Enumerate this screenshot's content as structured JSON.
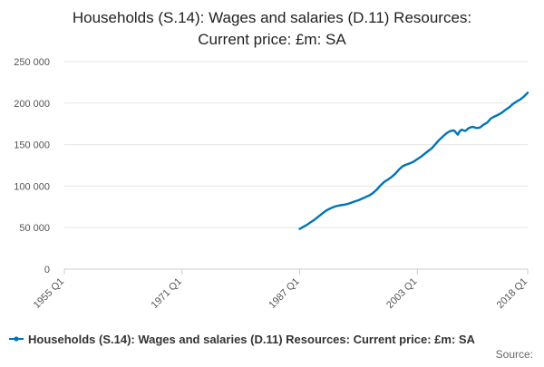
{
  "chart_data": {
    "type": "line",
    "title_lines": [
      "Households (S.14): Wages and salaries (D.11) Resources:",
      "Current price: £m: SA"
    ],
    "xlabel": "",
    "ylabel": "",
    "x_domain": [
      1955.0,
      2018.0
    ],
    "ylim": [
      0,
      250000
    ],
    "y_ticks": [
      0,
      50000,
      100000,
      150000,
      200000,
      250000
    ],
    "y_tick_labels": [
      "0",
      "50 000",
      "100 000",
      "150 000",
      "200 000",
      "250 000"
    ],
    "x_ticks": [
      1955.0,
      1971.0,
      1987.0,
      2003.0,
      2018.0
    ],
    "x_tick_labels": [
      "1955 Q1",
      "1971 Q1",
      "1987 Q1",
      "2003 Q1",
      "2018 Q1"
    ],
    "grid": "horizontal",
    "legend_position": "bottom",
    "series": [
      {
        "name": "Households (S.14): Wages and salaries (D.11) Resources: Current price: £m: SA",
        "color": "#0075b3",
        "points": [
          [
            1987.0,
            48500
          ],
          [
            1987.5,
            51000
          ],
          [
            1988.0,
            53500
          ],
          [
            1988.5,
            56500
          ],
          [
            1989.0,
            59500
          ],
          [
            1989.5,
            63000
          ],
          [
            1990.0,
            66500
          ],
          [
            1990.5,
            70000
          ],
          [
            1991.0,
            72500
          ],
          [
            1991.5,
            74500
          ],
          [
            1992.0,
            76000
          ],
          [
            1992.5,
            77000
          ],
          [
            1993.0,
            77500
          ],
          [
            1993.5,
            78500
          ],
          [
            1994.0,
            80000
          ],
          [
            1994.5,
            81500
          ],
          [
            1995.0,
            83000
          ],
          [
            1995.5,
            85000
          ],
          [
            1996.0,
            87000
          ],
          [
            1996.5,
            89000
          ],
          [
            1997.0,
            92000
          ],
          [
            1997.5,
            96000
          ],
          [
            1998.0,
            101000
          ],
          [
            1998.5,
            105000
          ],
          [
            1999.0,
            108000
          ],
          [
            1999.5,
            111000
          ],
          [
            2000.0,
            115000
          ],
          [
            2000.5,
            120000
          ],
          [
            2001.0,
            124000
          ],
          [
            2001.5,
            126000
          ],
          [
            2002.0,
            127500
          ],
          [
            2002.5,
            129500
          ],
          [
            2003.0,
            132500
          ],
          [
            2003.5,
            135500
          ],
          [
            2004.0,
            139000
          ],
          [
            2004.5,
            142500
          ],
          [
            2005.0,
            146000
          ],
          [
            2005.5,
            151000
          ],
          [
            2006.0,
            156000
          ],
          [
            2006.5,
            160000
          ],
          [
            2007.0,
            164000
          ],
          [
            2007.5,
            166500
          ],
          [
            2008.0,
            167000
          ],
          [
            2008.25,
            164500
          ],
          [
            2008.5,
            162000
          ],
          [
            2008.75,
            166000
          ],
          [
            2009.0,
            168000
          ],
          [
            2009.5,
            166500
          ],
          [
            2010.0,
            170000
          ],
          [
            2010.5,
            171500
          ],
          [
            2011.0,
            170000
          ],
          [
            2011.5,
            170500
          ],
          [
            2012.0,
            174000
          ],
          [
            2012.5,
            176500
          ],
          [
            2013.0,
            181500
          ],
          [
            2013.5,
            184000
          ],
          [
            2014.0,
            186000
          ],
          [
            2014.5,
            188500
          ],
          [
            2015.0,
            192000
          ],
          [
            2015.5,
            195000
          ],
          [
            2016.0,
            199000
          ],
          [
            2016.5,
            202000
          ],
          [
            2017.0,
            204500
          ],
          [
            2017.5,
            208000
          ],
          [
            2018.0,
            212500
          ]
        ]
      }
    ],
    "source_text": "Source:"
  }
}
